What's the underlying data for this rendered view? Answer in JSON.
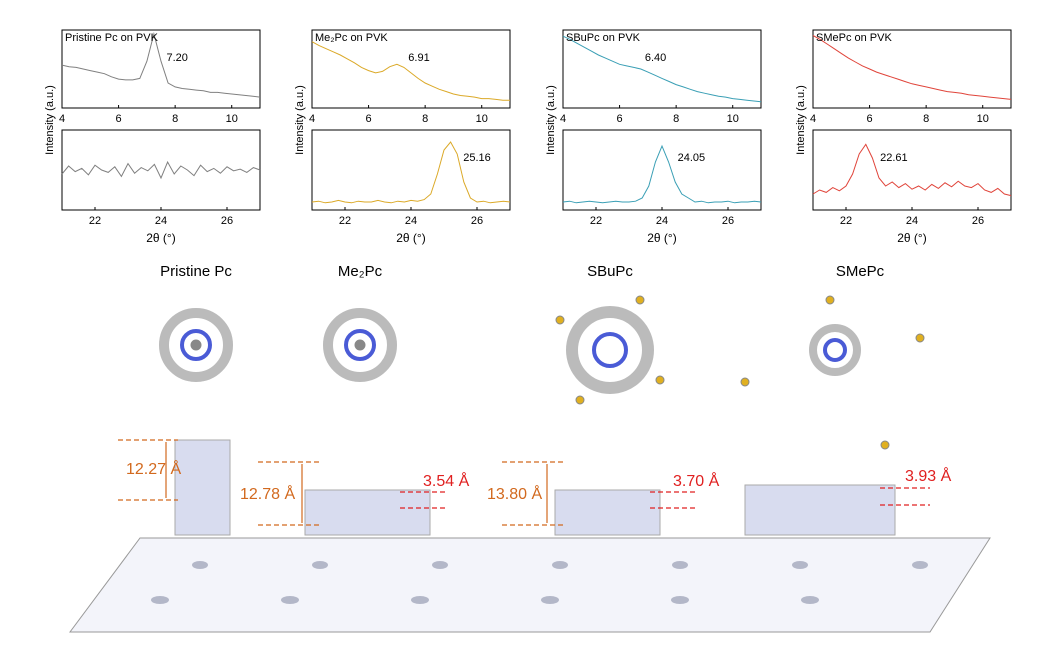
{
  "chart_data": [
    {
      "type": "line",
      "title": "Pristine Pc on PVK",
      "ylabel": "Intensity (a.u.)",
      "xlim": [
        4,
        11
      ],
      "xticks": [
        4,
        6,
        8,
        10
      ],
      "ylim": [
        0,
        1
      ],
      "x": [
        4,
        4.25,
        4.5,
        4.75,
        5,
        5.25,
        5.5,
        5.75,
        6,
        6.25,
        6.5,
        6.75,
        7,
        7.25,
        7.5,
        7.75,
        8,
        8.25,
        8.5,
        8.75,
        9,
        9.25,
        9.5,
        9.75,
        10,
        10.25,
        10.5,
        10.75,
        11
      ],
      "series": [
        {
          "name": "Pristine Pc on PVK",
          "color": "#808080",
          "values": [
            0.55,
            0.53,
            0.52,
            0.5,
            0.48,
            0.46,
            0.44,
            0.4,
            0.37,
            0.36,
            0.36,
            0.38,
            0.6,
            0.95,
            0.6,
            0.32,
            0.27,
            0.25,
            0.24,
            0.23,
            0.22,
            0.2,
            0.2,
            0.19,
            0.18,
            0.17,
            0.16,
            0.15,
            0.14
          ]
        }
      ],
      "annotations": [
        {
          "x": 7.2,
          "label": "7.20"
        }
      ]
    },
    {
      "type": "line",
      "xlabel": "2θ (°)",
      "xlim": [
        21,
        27
      ],
      "xticks": [
        22,
        24,
        26
      ],
      "ylim": [
        0,
        1
      ],
      "x": [
        21,
        21.2,
        21.4,
        21.6,
        21.8,
        22,
        22.2,
        22.4,
        22.6,
        22.8,
        23,
        23.2,
        23.4,
        23.6,
        23.8,
        24,
        24.2,
        24.4,
        24.6,
        24.8,
        25,
        25.2,
        25.4,
        25.6,
        25.8,
        26,
        26.2,
        26.4,
        26.6,
        26.8,
        27
      ],
      "series": [
        {
          "name": "Pristine Pc on PVK",
          "color": "#808080",
          "values": [
            0.45,
            0.55,
            0.48,
            0.52,
            0.44,
            0.56,
            0.5,
            0.47,
            0.54,
            0.42,
            0.58,
            0.46,
            0.53,
            0.49,
            0.57,
            0.4,
            0.6,
            0.45,
            0.55,
            0.5,
            0.43,
            0.56,
            0.48,
            0.52,
            0.46,
            0.54,
            0.49,
            0.51,
            0.47,
            0.53,
            0.5
          ]
        }
      ]
    },
    {
      "type": "line",
      "title": "Me₂Pc on PVK",
      "ylabel": "Intensity (a.u.)",
      "xlim": [
        4,
        11
      ],
      "xticks": [
        4,
        6,
        8,
        10
      ],
      "ylim": [
        0,
        1
      ],
      "x": [
        4,
        4.25,
        4.5,
        4.75,
        5,
        5.25,
        5.5,
        5.75,
        6,
        6.25,
        6.5,
        6.75,
        7,
        7.25,
        7.5,
        7.75,
        8,
        8.25,
        8.5,
        8.75,
        9,
        9.25,
        9.5,
        9.75,
        10,
        10.25,
        10.5,
        10.75,
        11
      ],
      "series": [
        {
          "name": "Me₂Pc on PVK",
          "color": "#dba928",
          "values": [
            0.85,
            0.8,
            0.76,
            0.72,
            0.68,
            0.63,
            0.58,
            0.52,
            0.48,
            0.45,
            0.47,
            0.53,
            0.56,
            0.52,
            0.45,
            0.38,
            0.32,
            0.28,
            0.24,
            0.21,
            0.18,
            0.16,
            0.15,
            0.14,
            0.12,
            0.12,
            0.11,
            0.1,
            0.1
          ]
        }
      ],
      "annotations": [
        {
          "x": 6.91,
          "label": "6.91"
        }
      ]
    },
    {
      "type": "line",
      "xlabel": "2θ (°)",
      "xlim": [
        21,
        27
      ],
      "xticks": [
        22,
        24,
        26
      ],
      "ylim": [
        0,
        1
      ],
      "x": [
        21,
        21.2,
        21.4,
        21.6,
        21.8,
        22,
        22.2,
        22.4,
        22.6,
        22.8,
        23,
        23.2,
        23.4,
        23.6,
        23.8,
        24,
        24.2,
        24.4,
        24.6,
        24.8,
        25,
        25.2,
        25.4,
        25.6,
        25.8,
        26,
        26.2,
        26.4,
        26.6,
        26.8,
        27
      ],
      "series": [
        {
          "name": "Me₂Pc on PVK",
          "color": "#dba928",
          "values": [
            0.1,
            0.11,
            0.09,
            0.1,
            0.12,
            0.1,
            0.09,
            0.11,
            0.1,
            0.1,
            0.12,
            0.1,
            0.09,
            0.11,
            0.1,
            0.12,
            0.11,
            0.13,
            0.2,
            0.45,
            0.75,
            0.85,
            0.7,
            0.35,
            0.15,
            0.1,
            0.11,
            0.09,
            0.1,
            0.11,
            0.1
          ]
        }
      ],
      "annotations": [
        {
          "x": 25.16,
          "label": "25.16"
        }
      ]
    },
    {
      "type": "line",
      "title": "SBuPc on PVK",
      "ylabel": "Intensity (a.u.)",
      "xlim": [
        4,
        11
      ],
      "xticks": [
        4,
        6,
        8,
        10
      ],
      "ylim": [
        0,
        1
      ],
      "x": [
        4,
        4.25,
        4.5,
        4.75,
        5,
        5.25,
        5.5,
        5.75,
        6,
        6.25,
        6.5,
        6.75,
        7,
        7.25,
        7.5,
        7.75,
        8,
        8.25,
        8.5,
        8.75,
        9,
        9.25,
        9.5,
        9.75,
        10,
        10.25,
        10.5,
        10.75,
        11
      ],
      "series": [
        {
          "name": "SBuPc on PVK",
          "color": "#3a9fb5",
          "values": [
            0.92,
            0.88,
            0.83,
            0.78,
            0.73,
            0.68,
            0.64,
            0.6,
            0.56,
            0.54,
            0.52,
            0.5,
            0.46,
            0.42,
            0.38,
            0.34,
            0.3,
            0.27,
            0.24,
            0.21,
            0.19,
            0.17,
            0.15,
            0.14,
            0.12,
            0.11,
            0.1,
            0.09,
            0.08
          ]
        }
      ],
      "annotations": [
        {
          "x": 6.4,
          "label": "6.40"
        }
      ]
    },
    {
      "type": "line",
      "xlabel": "2θ (°)",
      "xlim": [
        21,
        27
      ],
      "xticks": [
        22,
        24,
        26
      ],
      "ylim": [
        0,
        1
      ],
      "x": [
        21,
        21.2,
        21.4,
        21.6,
        21.8,
        22,
        22.2,
        22.4,
        22.6,
        22.8,
        23,
        23.2,
        23.4,
        23.6,
        23.8,
        24,
        24.2,
        24.4,
        24.6,
        24.8,
        25,
        25.2,
        25.4,
        25.6,
        25.8,
        26,
        26.2,
        26.4,
        26.6,
        26.8,
        27
      ],
      "series": [
        {
          "name": "SBuPc on PVK",
          "color": "#3a9fb5",
          "values": [
            0.1,
            0.11,
            0.09,
            0.1,
            0.11,
            0.1,
            0.09,
            0.1,
            0.11,
            0.1,
            0.1,
            0.11,
            0.15,
            0.3,
            0.6,
            0.8,
            0.6,
            0.35,
            0.2,
            0.15,
            0.1,
            0.11,
            0.09,
            0.1,
            0.1,
            0.11,
            0.09,
            0.1,
            0.1,
            0.11,
            0.1
          ]
        }
      ],
      "annotations": [
        {
          "x": 24.05,
          "label": "24.05"
        }
      ]
    },
    {
      "type": "line",
      "title": "SMePc on PVK",
      "ylabel": "Intensity (a.u.)",
      "xlim": [
        4,
        11
      ],
      "xticks": [
        4,
        6,
        8,
        10
      ],
      "ylim": [
        0,
        1
      ],
      "x": [
        4,
        4.25,
        4.5,
        4.75,
        5,
        5.25,
        5.5,
        5.75,
        6,
        6.25,
        6.5,
        6.75,
        7,
        7.25,
        7.5,
        7.75,
        8,
        8.25,
        8.5,
        8.75,
        9,
        9.25,
        9.5,
        9.75,
        10,
        10.25,
        10.5,
        10.75,
        11
      ],
      "series": [
        {
          "name": "SMePc on PVK",
          "color": "#e0443a",
          "values": [
            0.93,
            0.88,
            0.82,
            0.76,
            0.7,
            0.64,
            0.59,
            0.54,
            0.5,
            0.46,
            0.43,
            0.4,
            0.37,
            0.34,
            0.31,
            0.29,
            0.27,
            0.25,
            0.23,
            0.21,
            0.2,
            0.19,
            0.17,
            0.16,
            0.15,
            0.14,
            0.13,
            0.12,
            0.11
          ]
        }
      ]
    },
    {
      "type": "line",
      "xlabel": "2θ (°)",
      "xlim": [
        21,
        27
      ],
      "xticks": [
        22,
        24,
        26
      ],
      "ylim": [
        0,
        1
      ],
      "x": [
        21,
        21.2,
        21.4,
        21.6,
        21.8,
        22,
        22.2,
        22.4,
        22.6,
        22.8,
        23,
        23.2,
        23.4,
        23.6,
        23.8,
        24,
        24.2,
        24.4,
        24.6,
        24.8,
        25,
        25.2,
        25.4,
        25.6,
        25.8,
        26,
        26.2,
        26.4,
        26.6,
        26.8,
        27
      ],
      "series": [
        {
          "name": "SMePc on PVK",
          "color": "#e0443a",
          "values": [
            0.2,
            0.25,
            0.22,
            0.28,
            0.24,
            0.3,
            0.45,
            0.7,
            0.82,
            0.65,
            0.4,
            0.3,
            0.35,
            0.28,
            0.33,
            0.26,
            0.3,
            0.25,
            0.32,
            0.27,
            0.34,
            0.29,
            0.36,
            0.3,
            0.28,
            0.33,
            0.25,
            0.22,
            0.27,
            0.2,
            0.18
          ]
        }
      ],
      "annotations": [
        {
          "x": 22.61,
          "label": "22.61"
        }
      ]
    }
  ],
  "molecules": [
    {
      "label": "Pristine Pc"
    },
    {
      "label": "Me₂Pc"
    },
    {
      "label": "SBuPc"
    },
    {
      "label": "SMePc"
    }
  ],
  "spacings": [
    {
      "label": "12.27 Å"
    },
    {
      "label": "12.78 Å"
    },
    {
      "label": "13.80 Å"
    },
    {
      "label": "3.54 Å"
    },
    {
      "label": "3.70 Å"
    },
    {
      "label": "3.93 Å"
    }
  ]
}
